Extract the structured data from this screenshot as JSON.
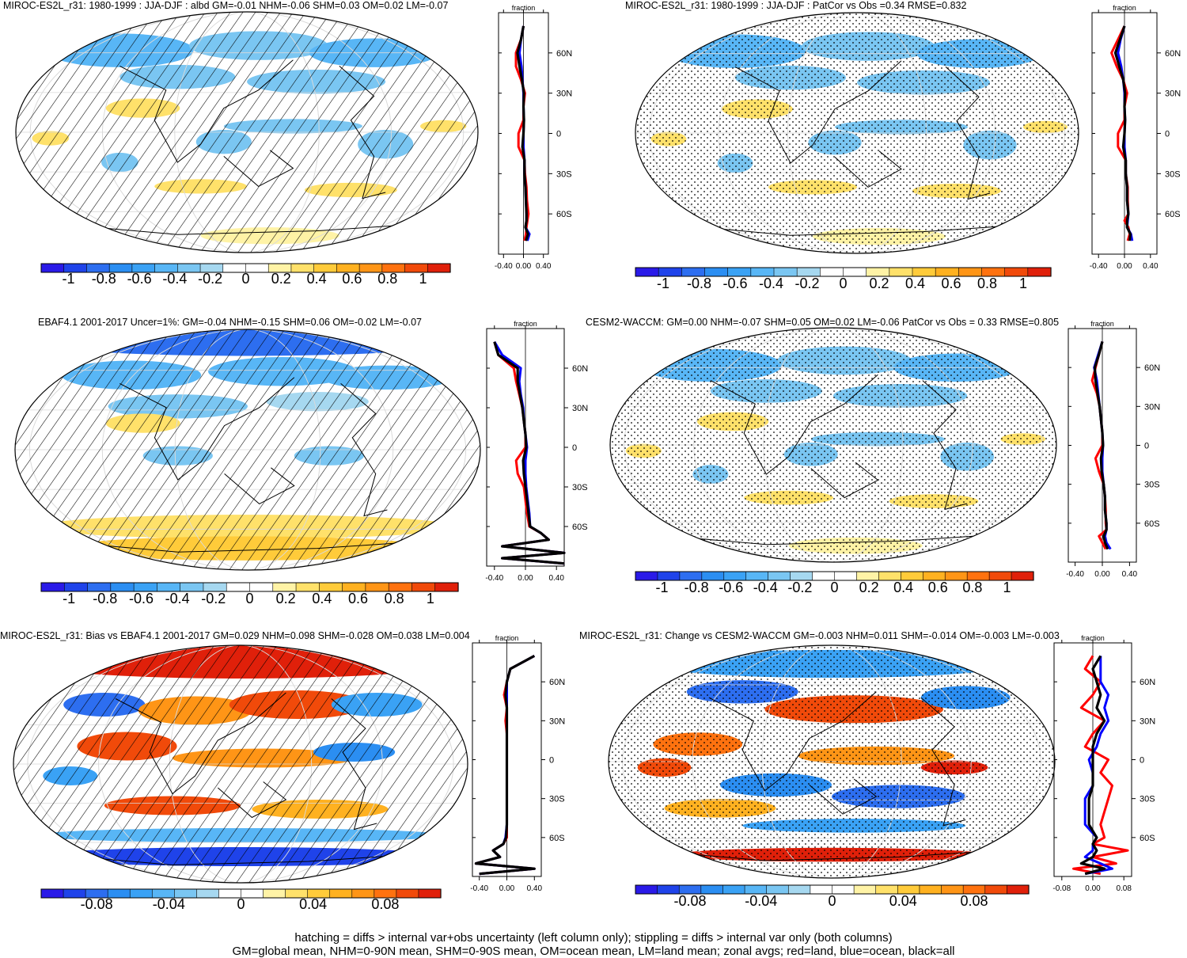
{
  "colors": {
    "scale": [
      "#2a1ae8",
      "#1f43ea",
      "#2d6ef0",
      "#2b8ef2",
      "#3aa2f5",
      "#58b6f6",
      "#7ac6f2",
      "#a6d8f0",
      "#ffffff",
      "#ffffff",
      "#fff3a6",
      "#ffe16a",
      "#ffcb3a",
      "#ffb120",
      "#ff9516",
      "#ff720f",
      "#f14a0a",
      "#e0200a"
    ],
    "land": "#ff0000",
    "ocean": "#0000ff",
    "all": "#000000"
  },
  "footer": {
    "line1": "hatching = diffs > internal var+obs uncertainty (left column only); stippling = diffs > internal var only (both columns)",
    "line2": "GM=global mean, NHM=0-90N mean, SHM=0-90S mean, OM=ocean mean, LM=land mean; zonal avgs; red=land, blue=ocean, black=all"
  },
  "panels": [
    {
      "title": "MIROC-ES2L_r31: 1980-1999 : JJA-DJF : albd GM=-0.01 NHM=-0.06 SHM=0.03 OM=0.02 LM=-0.07",
      "overlay": "hatching",
      "colorbar": {
        "labels": [
          "-1",
          "-0.8",
          "-0.6",
          "-0.4",
          "-0.2",
          "0",
          "0.2",
          "0.4",
          "0.6",
          "0.8",
          "1"
        ]
      },
      "chart_data": {
        "type": "line",
        "title": "fraction",
        "y": [
          -80,
          -75,
          -70,
          -65,
          -60,
          -50,
          -40,
          -30,
          -20,
          -10,
          0,
          10,
          20,
          30,
          40,
          50,
          60,
          70,
          80
        ],
        "series": [
          {
            "name": "land",
            "values": [
              0.02,
              0.05,
              0.06,
              0.08,
              0.1,
              0.07,
              0.06,
              0.03,
              0.02,
              -0.1,
              -0.1,
              0.0,
              0.0,
              0.03,
              -0.05,
              -0.15,
              -0.15,
              -0.05,
              0.0
            ]
          },
          {
            "name": "ocean",
            "values": [
              0.08,
              0.12,
              0.04,
              0.06,
              0.06,
              0.05,
              0.04,
              0.02,
              0.02,
              0.0,
              0.0,
              0.01,
              0.0,
              0.0,
              -0.02,
              -0.04,
              -0.08,
              -0.05,
              0.0
            ]
          },
          {
            "name": "all",
            "values": [
              0.05,
              0.09,
              0.04,
              0.06,
              0.06,
              0.05,
              0.04,
              0.02,
              0.02,
              -0.02,
              0.0,
              0.01,
              0.0,
              0.01,
              -0.03,
              -0.08,
              -0.12,
              -0.05,
              0.0
            ]
          }
        ],
        "xticks": [
          "-0.40",
          "0.00",
          "0.40"
        ],
        "yticks": [
          "60N",
          "30N",
          "0",
          "30S",
          "60S"
        ]
      }
    },
    {
      "title": "MIROC-ES2L_r31: 1980-1999 : JJA-DJF : PatCor vs Obs =0.34 RMSE=0.832",
      "overlay": "stipple",
      "colorbar": {
        "labels": [
          "-1",
          "-0.8",
          "-0.6",
          "-0.4",
          "-0.2",
          "0",
          "0.2",
          "0.4",
          "0.6",
          "0.8",
          "1"
        ]
      },
      "chart_data": {
        "type": "line",
        "title": "fraction",
        "y": [
          -80,
          -75,
          -70,
          -65,
          -60,
          -50,
          -40,
          -30,
          -20,
          -10,
          0,
          10,
          20,
          30,
          40,
          50,
          60,
          70,
          80
        ],
        "series": [
          {
            "name": "land",
            "values": [
              0.05,
              0.08,
              0.06,
              0.0,
              0.06,
              0.05,
              0.05,
              0.02,
              0.02,
              -0.1,
              -0.1,
              0.0,
              0.0,
              0.04,
              -0.02,
              -0.12,
              -0.2,
              -0.1,
              0.0
            ]
          },
          {
            "name": "ocean",
            "values": [
              0.12,
              0.1,
              0.04,
              0.05,
              0.06,
              0.04,
              0.04,
              0.02,
              0.02,
              0.0,
              0.0,
              0.01,
              0.0,
              0.0,
              -0.02,
              -0.05,
              -0.1,
              -0.06,
              0.0
            ]
          },
          {
            "name": "all",
            "values": [
              0.08,
              0.09,
              0.04,
              0.04,
              0.06,
              0.04,
              0.04,
              0.02,
              0.02,
              -0.02,
              0.0,
              0.01,
              0.0,
              0.01,
              -0.02,
              -0.08,
              -0.14,
              -0.07,
              0.0
            ]
          }
        ],
        "xticks": [
          "-0.40",
          "0.00",
          "0.40"
        ],
        "yticks": [
          "60N",
          "30N",
          "0",
          "30S",
          "60S"
        ]
      }
    },
    {
      "title": "EBAF4.1 2001-2017 Uncer=1%: GM=-0.04 NHM=-0.15 SHM=0.06 OM=-0.02 LM=-0.07",
      "overlay": "hatching",
      "colorbar": {
        "labels": [
          "-1",
          "-0.8",
          "-0.6",
          "-0.4",
          "-0.2",
          "0",
          "0.2",
          "0.4",
          "0.6",
          "0.8",
          "1"
        ]
      },
      "chart_data": {
        "type": "line",
        "title": "fraction",
        "y": [
          -88,
          -84,
          -80,
          -75,
          -70,
          -65,
          -60,
          -50,
          -40,
          -30,
          -20,
          -10,
          0,
          10,
          20,
          30,
          40,
          50,
          60,
          70,
          80
        ],
        "series": [
          {
            "name": "land",
            "values": [
              0.5,
              -0.3,
              0.5,
              -0.3,
              0.3,
              0.2,
              0.05,
              0.02,
              0.0,
              -0.02,
              -0.1,
              -0.12,
              0.0,
              0.0,
              -0.02,
              -0.04,
              -0.08,
              -0.12,
              -0.15,
              -0.35,
              -0.4
            ]
          },
          {
            "name": "ocean",
            "values": [
              0.5,
              -0.3,
              0.5,
              -0.3,
              0.3,
              0.2,
              0.06,
              0.05,
              0.03,
              0.01,
              0.0,
              0.0,
              0.02,
              0.0,
              -0.02,
              -0.03,
              -0.06,
              -0.08,
              -0.06,
              -0.3,
              -0.4
            ]
          },
          {
            "name": "all",
            "values": [
              0.5,
              -0.3,
              0.5,
              -0.3,
              0.3,
              0.2,
              0.06,
              0.04,
              0.02,
              0.0,
              -0.02,
              -0.03,
              0.01,
              0.0,
              -0.02,
              -0.04,
              -0.07,
              -0.1,
              -0.1,
              -0.35,
              -0.4
            ]
          }
        ],
        "xticks": [
          "-0.40",
          "0.00",
          "0.40"
        ],
        "yticks": [
          "60N",
          "30N",
          "0",
          "30S",
          "60S"
        ]
      }
    },
    {
      "title": "CESM2-WACCM: GM=0.00 NHM=-0.07 SHM=0.05 OM=0.02 LM=-0.06 PatCor vs Obs = 0.33 RMSE=0.805",
      "overlay": "stipple",
      "colorbar": {
        "labels": [
          "-1",
          "-0.8",
          "-0.6",
          "-0.4",
          "-0.2",
          "0",
          "0.2",
          "0.4",
          "0.6",
          "0.8",
          "1"
        ]
      },
      "chart_data": {
        "type": "line",
        "title": "fraction",
        "y": [
          -80,
          -75,
          -70,
          -65,
          -60,
          -50,
          -40,
          -30,
          -20,
          -10,
          0,
          10,
          20,
          30,
          40,
          50,
          60,
          70,
          80
        ],
        "series": [
          {
            "name": "land",
            "values": [
              0.05,
              0.0,
              -0.05,
              0.06,
              0.05,
              0.05,
              0.04,
              0.02,
              -0.05,
              -0.1,
              0.0,
              0.0,
              -0.02,
              -0.04,
              -0.08,
              -0.15,
              -0.1,
              -0.05,
              0.0
            ]
          },
          {
            "name": "ocean",
            "values": [
              0.12,
              0.06,
              0.04,
              0.06,
              0.06,
              0.04,
              0.04,
              0.02,
              0.0,
              0.0,
              0.01,
              0.0,
              -0.02,
              -0.04,
              -0.06,
              -0.08,
              -0.12,
              -0.06,
              0.0
            ]
          },
          {
            "name": "all",
            "values": [
              0.08,
              0.04,
              0.02,
              0.06,
              0.06,
              0.04,
              0.04,
              0.02,
              -0.01,
              -0.02,
              0.01,
              0.0,
              -0.02,
              -0.04,
              -0.07,
              -0.1,
              -0.11,
              -0.05,
              0.0
            ]
          }
        ],
        "xticks": [
          "-0.40",
          "0.00",
          "0.40"
        ],
        "yticks": [
          "60N",
          "30N",
          "0",
          "30S",
          "60S"
        ]
      }
    },
    {
      "title": "MIROC-ES2L_r31: Bias vs EBAF4.1 2001-2017 GM=0.029 NHM=0.098 SHM=-0.028 OM=0.038 LM=0.004",
      "overlay": "hatching",
      "colorbar": {
        "labels": [
          "-0.08",
          "-0.04",
          "0",
          "0.04",
          "0.08"
        ]
      },
      "chart_data": {
        "type": "line",
        "title": "fraction",
        "y": [
          -88,
          -84,
          -80,
          -75,
          -70,
          -65,
          -60,
          -50,
          -40,
          -30,
          -20,
          -10,
          0,
          10,
          20,
          30,
          40,
          50,
          60,
          70,
          80
        ],
        "series": [
          {
            "name": "land",
            "values": [
              -0.4,
              0.4,
              -0.45,
              -0.1,
              -0.2,
              -0.05,
              0.0,
              0.0,
              0.0,
              0.0,
              0.0,
              0.0,
              0.0,
              0.0,
              0.0,
              -0.02,
              0.0,
              -0.04,
              0.0,
              0.05,
              0.4
            ]
          },
          {
            "name": "ocean",
            "values": [
              -0.4,
              0.4,
              -0.45,
              -0.1,
              -0.2,
              -0.05,
              -0.02,
              0.0,
              0.0,
              0.0,
              0.0,
              0.0,
              0.0,
              0.0,
              0.0,
              0.0,
              0.0,
              0.0,
              0.0,
              0.05,
              0.4
            ]
          },
          {
            "name": "all",
            "values": [
              -0.4,
              0.4,
              -0.45,
              -0.1,
              -0.2,
              -0.05,
              -0.01,
              0.0,
              0.0,
              0.0,
              0.0,
              0.0,
              0.0,
              0.0,
              0.0,
              0.0,
              0.0,
              -0.02,
              0.0,
              0.05,
              0.4
            ]
          }
        ],
        "xticks": [
          "-0.40",
          "0.00",
          "0.40"
        ],
        "yticks": [
          "60N",
          "30N",
          "0",
          "30S",
          "60S"
        ]
      }
    },
    {
      "title": "MIROC-ES2L_r31: Change vs CESM2-WACCM GM=-0.003 NHM=0.011 SHM=-0.014 OM=-0.003 LM=-0.003",
      "overlay": "stipple",
      "colorbar": {
        "labels": [
          "-0.08",
          "-0.04",
          "0",
          "0.04",
          "0.08"
        ]
      },
      "chart_data": {
        "type": "line",
        "title": "fraction",
        "y": [
          -88,
          -84,
          -80,
          -75,
          -70,
          -65,
          -60,
          -50,
          -40,
          -30,
          -20,
          -10,
          0,
          10,
          20,
          30,
          40,
          50,
          60,
          70,
          80
        ],
        "series": [
          {
            "name": "land",
            "values": [
              0.02,
              -0.05,
              0.06,
              0.0,
              0.09,
              0.0,
              0.03,
              0.02,
              0.03,
              0.04,
              0.05,
              0.02,
              0.04,
              -0.02,
              0.0,
              0.03,
              -0.03,
              0.0,
              0.02,
              -0.02,
              0.0
            ]
          },
          {
            "name": "ocean",
            "values": [
              -0.02,
              0.05,
              0.02,
              -0.02,
              0.0,
              0.0,
              0.01,
              -0.02,
              -0.02,
              -0.02,
              0.0,
              0.0,
              -0.01,
              0.01,
              0.02,
              0.04,
              0.03,
              0.04,
              0.02,
              0.02,
              0.02
            ]
          },
          {
            "name": "all",
            "values": [
              -0.02,
              0.03,
              -0.03,
              0.0,
              0.01,
              0.0,
              0.01,
              -0.01,
              -0.01,
              -0.01,
              0.0,
              0.0,
              0.0,
              0.0,
              0.01,
              0.03,
              0.01,
              0.02,
              0.01,
              0.0,
              0.02
            ]
          }
        ],
        "xticks": [
          "-0.08",
          "0.00",
          "0.08"
        ],
        "yticks": [
          "60N",
          "30N",
          "0",
          "30S",
          "60S"
        ]
      }
    }
  ]
}
